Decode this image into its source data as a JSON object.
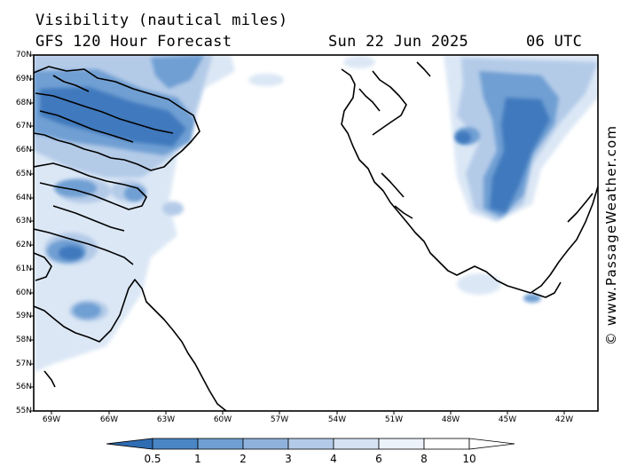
{
  "header": {
    "parameter": "Visibility (nautical miles)",
    "model": "GFS 120 Hour Forecast",
    "date": "Sun 22 Jun 2025",
    "time": "06 UTC"
  },
  "map": {
    "lat_labels": [
      "70N",
      "69N",
      "68N",
      "67N",
      "66N",
      "65N",
      "64N",
      "63N",
      "62N",
      "61N",
      "60N",
      "59N",
      "58N",
      "57N",
      "56N",
      "55N"
    ],
    "lon_labels": [
      "69W",
      "66W",
      "63W",
      "60W",
      "57W",
      "54W",
      "51W",
      "48W",
      "45W",
      "42W"
    ],
    "coastline_color": "#000000",
    "fill_colors": {
      "lt_0.5": "#2f6db3",
      "0.5_1": "#4a86c5",
      "1_2": "#6f9fd3",
      "2_3": "#9bbde2",
      "3_4": "#c3d7ee",
      "6_8": "#e8f0f9"
    }
  },
  "colorbar": {
    "labels": [
      "0.5",
      "1",
      "2",
      "3",
      "4",
      "6",
      "8",
      "10"
    ],
    "colors": [
      "#2f6db3",
      "#4a86c5",
      "#6f9fd3",
      "#8fb2dd",
      "#b3cbe9",
      "#d4e2f3",
      "#ecf2fa",
      "#ffffff"
    ]
  },
  "credit": "© www.PassageWeather.com"
}
